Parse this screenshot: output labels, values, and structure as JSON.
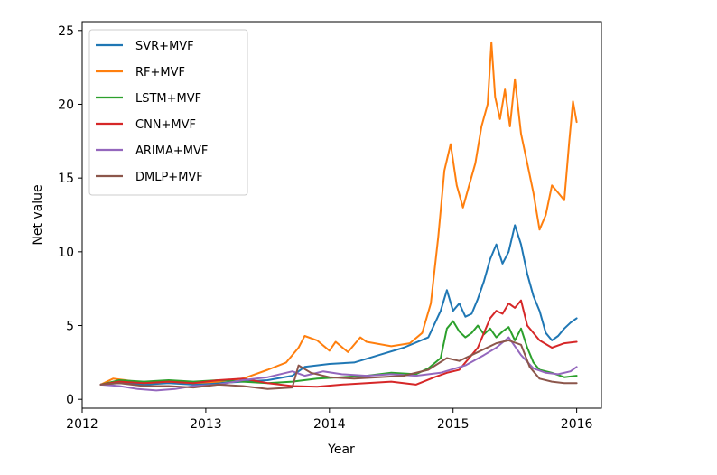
{
  "chart_data": {
    "type": "line",
    "title": "",
    "xlabel": "Year",
    "ylabel": "Net value",
    "xlim": [
      2012.0,
      2016.2
    ],
    "ylim": [
      -0.6,
      25.6
    ],
    "xticks": [
      2012,
      2013,
      2014,
      2015,
      2016
    ],
    "xtick_labels": [
      "2012",
      "2013",
      "2014",
      "2015",
      "2016"
    ],
    "yticks": [
      0,
      5,
      10,
      15,
      20,
      25
    ],
    "ytick_labels": [
      "0",
      "5",
      "10",
      "15",
      "20",
      "25"
    ],
    "grid": false,
    "legend_position": "top-left",
    "series": [
      {
        "name": "SVR+MVF",
        "color": "#1f77b4",
        "x": [
          2012.15,
          2012.3,
          2012.5,
          2012.7,
          2012.9,
          2013.1,
          2013.3,
          2013.5,
          2013.7,
          2013.8,
          2014.0,
          2014.2,
          2014.4,
          2014.6,
          2014.8,
          2014.9,
          2014.95,
          2015.0,
          2015.05,
          2015.1,
          2015.15,
          2015.2,
          2015.25,
          2015.3,
          2015.35,
          2015.4,
          2015.45,
          2015.5,
          2015.55,
          2015.6,
          2015.65,
          2015.7,
          2015.75,
          2015.8,
          2015.85,
          2015.9,
          2015.95,
          2016.0
        ],
        "y": [
          1.0,
          1.1,
          1.0,
          1.1,
          1.0,
          1.1,
          1.2,
          1.3,
          1.6,
          2.2,
          2.4,
          2.5,
          3.0,
          3.5,
          4.2,
          6.0,
          7.4,
          6.0,
          6.5,
          5.6,
          5.8,
          6.8,
          8.0,
          9.5,
          10.5,
          9.2,
          10.0,
          11.8,
          10.5,
          8.5,
          7.0,
          6.0,
          4.5,
          4.0,
          4.3,
          4.8,
          5.2,
          5.5
        ]
      },
      {
        "name": "RF+MVF",
        "color": "#ff7f0e",
        "x": [
          2012.15,
          2012.25,
          2012.35,
          2012.5,
          2012.7,
          2012.9,
          2013.1,
          2013.3,
          2013.5,
          2013.65,
          2013.75,
          2013.8,
          2013.9,
          2014.0,
          2014.05,
          2014.15,
          2014.25,
          2014.3,
          2014.5,
          2014.65,
          2014.75,
          2014.82,
          2014.88,
          2014.93,
          2014.98,
          2015.03,
          2015.08,
          2015.13,
          2015.18,
          2015.23,
          2015.28,
          2015.31,
          2015.34,
          2015.38,
          2015.42,
          2015.46,
          2015.5,
          2015.55,
          2015.6,
          2015.65,
          2015.7,
          2015.75,
          2015.8,
          2015.85,
          2015.9,
          2015.94,
          2015.97,
          2016.0
        ],
        "y": [
          1.0,
          1.4,
          1.3,
          1.1,
          1.2,
          1.1,
          1.2,
          1.4,
          2.0,
          2.5,
          3.5,
          4.3,
          4.0,
          3.3,
          3.9,
          3.2,
          4.2,
          3.9,
          3.6,
          3.8,
          4.5,
          6.5,
          11.0,
          15.5,
          17.3,
          14.5,
          13.0,
          14.5,
          16.0,
          18.5,
          20.0,
          24.2,
          20.5,
          19.0,
          21.0,
          18.5,
          21.7,
          18.0,
          16.0,
          14.0,
          11.5,
          12.5,
          14.5,
          14.0,
          13.5,
          17.5,
          20.2,
          18.8
        ]
      },
      {
        "name": "LSTM+MVF",
        "color": "#2ca02c",
        "x": [
          2012.15,
          2012.3,
          2012.5,
          2012.7,
          2012.9,
          2013.1,
          2013.3,
          2013.5,
          2013.7,
          2013.9,
          2014.1,
          2014.3,
          2014.5,
          2014.7,
          2014.8,
          2014.9,
          2014.95,
          2015.0,
          2015.05,
          2015.1,
          2015.15,
          2015.2,
          2015.25,
          2015.3,
          2015.35,
          2015.4,
          2015.45,
          2015.5,
          2015.55,
          2015.6,
          2015.65,
          2015.7,
          2015.8,
          2015.9,
          2016.0
        ],
        "y": [
          1.0,
          1.3,
          1.2,
          1.3,
          1.2,
          1.3,
          1.2,
          1.1,
          1.2,
          1.4,
          1.5,
          1.6,
          1.8,
          1.7,
          2.1,
          2.8,
          4.8,
          5.3,
          4.6,
          4.2,
          4.5,
          5.0,
          4.4,
          4.8,
          4.2,
          4.6,
          4.9,
          4.0,
          4.8,
          3.5,
          2.5,
          2.0,
          1.8,
          1.5,
          1.6
        ]
      },
      {
        "name": "CNN+MVF",
        "color": "#d62728",
        "x": [
          2012.15,
          2012.3,
          2012.5,
          2012.7,
          2012.9,
          2013.1,
          2013.3,
          2013.5,
          2013.7,
          2013.9,
          2014.1,
          2014.3,
          2014.5,
          2014.7,
          2014.85,
          2014.95,
          2015.05,
          2015.15,
          2015.2,
          2015.25,
          2015.3,
          2015.35,
          2015.4,
          2015.45,
          2015.5,
          2015.55,
          2015.6,
          2015.7,
          2015.8,
          2015.9,
          2016.0
        ],
        "y": [
          1.0,
          1.2,
          1.1,
          1.2,
          1.1,
          1.3,
          1.4,
          1.1,
          0.9,
          0.85,
          1.0,
          1.1,
          1.2,
          1.0,
          1.5,
          1.8,
          2.0,
          3.0,
          3.5,
          4.5,
          5.5,
          6.0,
          5.8,
          6.5,
          6.2,
          6.7,
          5.0,
          4.0,
          3.5,
          3.8,
          3.9
        ]
      },
      {
        "name": "ARIMA+MVF",
        "color": "#9467bd",
        "x": [
          2012.15,
          2012.3,
          2012.45,
          2012.6,
          2012.75,
          2012.9,
          2013.1,
          2013.3,
          2013.5,
          2013.7,
          2013.8,
          2013.95,
          2014.1,
          2014.3,
          2014.5,
          2014.7,
          2014.9,
          2015.1,
          2015.25,
          2015.35,
          2015.45,
          2015.55,
          2015.65,
          2015.75,
          2015.85,
          2015.95,
          2016.0
        ],
        "y": [
          1.0,
          0.9,
          0.7,
          0.6,
          0.7,
          0.9,
          1.0,
          1.3,
          1.5,
          1.9,
          1.6,
          1.9,
          1.7,
          1.6,
          1.7,
          1.6,
          1.8,
          2.3,
          3.0,
          3.5,
          4.2,
          3.0,
          2.1,
          1.8,
          1.7,
          1.9,
          2.2
        ]
      },
      {
        "name": "DMLP+MVF",
        "color": "#8c564b",
        "x": [
          2012.15,
          2012.3,
          2012.5,
          2012.7,
          2012.9,
          2013.1,
          2013.3,
          2013.5,
          2013.7,
          2013.75,
          2013.85,
          2014.0,
          2014.2,
          2014.4,
          2014.6,
          2014.8,
          2014.95,
          2015.05,
          2015.15,
          2015.25,
          2015.35,
          2015.45,
          2015.55,
          2015.62,
          2015.7,
          2015.8,
          2015.9,
          2016.0
        ],
        "y": [
          1.0,
          1.1,
          0.9,
          0.9,
          0.8,
          1.0,
          0.9,
          0.7,
          0.8,
          2.3,
          1.8,
          1.5,
          1.4,
          1.5,
          1.6,
          2.0,
          2.8,
          2.6,
          3.0,
          3.4,
          3.8,
          4.0,
          3.7,
          2.2,
          1.4,
          1.2,
          1.1,
          1.1
        ]
      }
    ]
  }
}
